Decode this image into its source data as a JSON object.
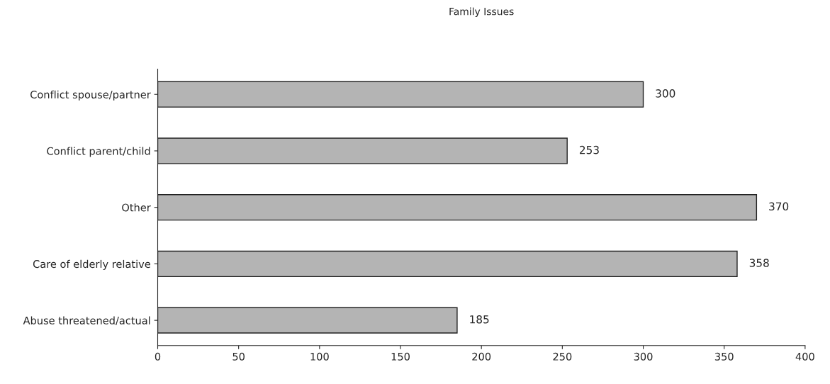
{
  "chart_data": {
    "type": "bar",
    "orientation": "horizontal",
    "title": "Family Issues",
    "categories": [
      "Conflict spouse/partner",
      "Conflict parent/child",
      "Other",
      "Care of elderly relative",
      "Abuse threatened/actual"
    ],
    "values": [
      300,
      253,
      370,
      358,
      185
    ],
    "color": "#b4b4b4",
    "xlim": [
      0,
      400
    ],
    "xticks": [
      0,
      50,
      100,
      150,
      200,
      250,
      300,
      350,
      400
    ],
    "data_labels": true,
    "grid": false,
    "legend": false
  }
}
